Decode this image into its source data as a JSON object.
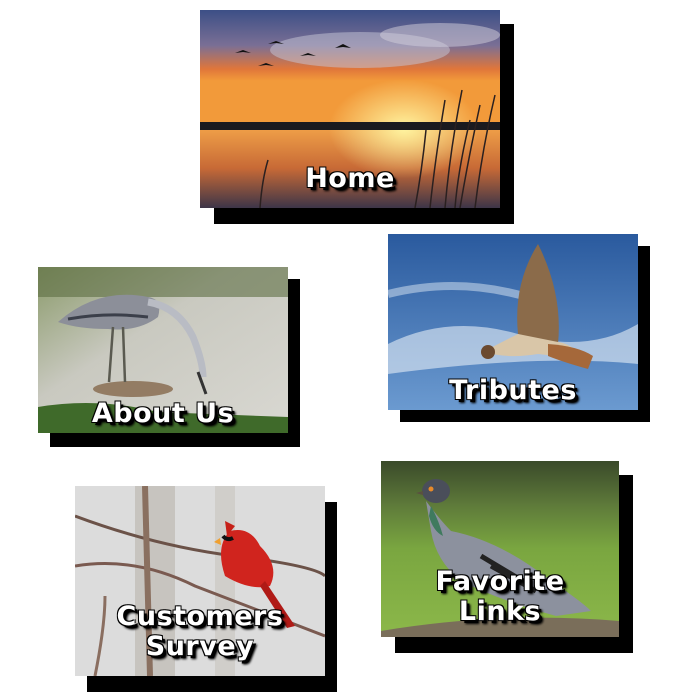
{
  "nav": {
    "home": {
      "label": "Home",
      "image": "geese-sunset-photo"
    },
    "about": {
      "label": "About Us",
      "image": "heron-photo"
    },
    "tributes": {
      "label": "Tributes",
      "image": "hawk-photo"
    },
    "survey": {
      "label": "Customers\nSurvey",
      "image": "cardinal-photo"
    },
    "links": {
      "label": "Favorite\nLinks",
      "image": "pigeon-photo"
    }
  }
}
